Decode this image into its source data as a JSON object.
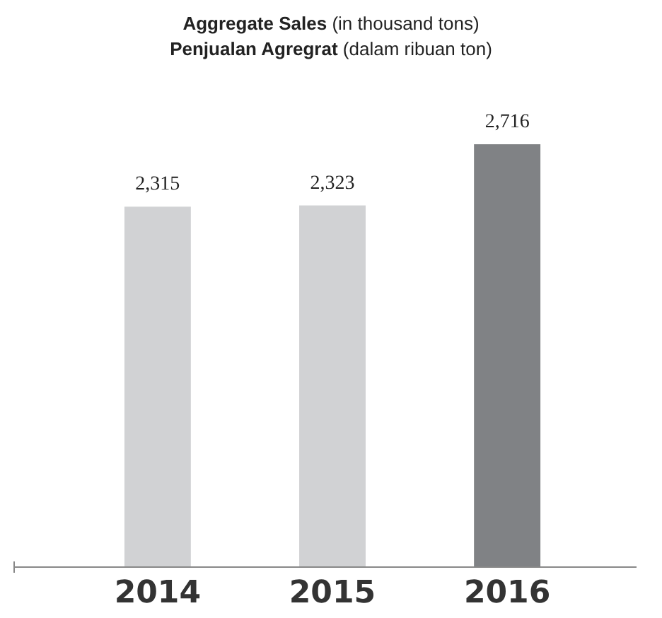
{
  "chart_data": {
    "type": "bar",
    "title": "Aggregate Sales (in thousand tons)",
    "subtitle": "Penjualan Agregrat (dalam ribuan ton)",
    "categories": [
      "2014",
      "2015",
      "2016"
    ],
    "values": [
      2315,
      2323,
      2716
    ],
    "value_labels": [
      "2,315",
      "2,323",
      "2,716"
    ],
    "colors": [
      "#d1d2d4",
      "#d1d2d4",
      "#808285"
    ],
    "tick_labels": "x"
  }
}
